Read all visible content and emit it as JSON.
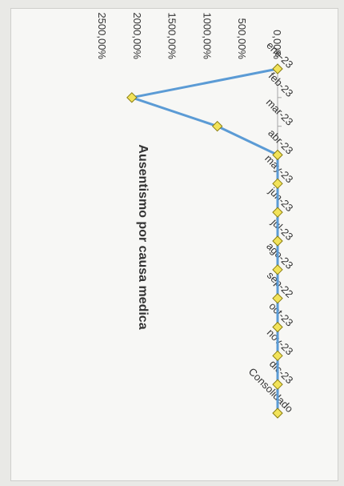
{
  "chart_data": {
    "type": "line",
    "title": "Ausentismo por causa medica",
    "xlabel": "",
    "ylabel": "",
    "categories": [
      "ene-23",
      "feb-23",
      "mar-23",
      "abr-23",
      "may-23",
      "jun-23",
      "jul-23",
      "ago-23",
      "sep-22",
      "oct-23",
      "nov-23",
      "dic-23",
      "Consolidado"
    ],
    "series": [
      {
        "values": [
          0,
          2080,
          860,
          0,
          0,
          0,
          0,
          0,
          0,
          0,
          0,
          0,
          0
        ]
      }
    ],
    "yticks": [
      "0,00%",
      "500,00%",
      "1000,00%",
      "1500,00%",
      "2000,00%",
      "2500,00%"
    ],
    "ylim": [
      0,
      2500
    ],
    "grid": false,
    "line_color": "#5b9bd5",
    "marker_color": "#f2e35a",
    "marker_shape": "diamond",
    "orientation": "rotated-90-clockwise"
  }
}
